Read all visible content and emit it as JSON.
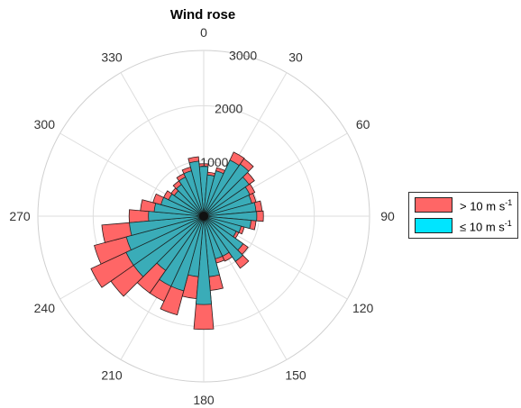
{
  "chart_data": {
    "type": "polar-bar",
    "title": "Wind rose",
    "angle_labels": [
      "0",
      "30",
      "60",
      "90",
      "120",
      "150",
      "180",
      "210",
      "240",
      "270",
      "300",
      "330"
    ],
    "radial_ticks": [
      1000,
      2000,
      3000
    ],
    "radial_tick_labels": [
      "1000",
      "2000",
      "3000"
    ],
    "rlim": [
      0,
      3000
    ],
    "direction_convention": "clockwise from north",
    "bin_width_deg": 10,
    "colors": {
      "low": "#3aacb8",
      "high": "#ff6666",
      "grid": "#dddddd"
    },
    "legend": {
      "placement": "right",
      "items": [
        {
          "key": "high",
          "prefix": "> 10 m s",
          "sup": "-1",
          "color": "#ff6666"
        },
        {
          "key": "low",
          "prefix": "≤ 10 m s",
          "sup": "-1",
          "color": "#00e5ff"
        }
      ]
    },
    "bins": [
      {
        "dir": 0,
        "low": 900,
        "high": 950
      },
      {
        "dir": 10,
        "low": 750,
        "high": 800
      },
      {
        "dir": 20,
        "low": 850,
        "high": 910
      },
      {
        "dir": 30,
        "low": 1120,
        "high": 1280
      },
      {
        "dir": 40,
        "low": 1150,
        "high": 1270
      },
      {
        "dir": 50,
        "low": 1000,
        "high": 1120
      },
      {
        "dir": 60,
        "low": 920,
        "high": 1020
      },
      {
        "dir": 70,
        "low": 900,
        "high": 980
      },
      {
        "dir": 80,
        "low": 950,
        "high": 1060
      },
      {
        "dir": 90,
        "low": 960,
        "high": 1080
      },
      {
        "dir": 100,
        "low": 860,
        "high": 950
      },
      {
        "dir": 110,
        "low": 700,
        "high": 760
      },
      {
        "dir": 120,
        "low": 650,
        "high": 700
      },
      {
        "dir": 130,
        "low": 870,
        "high": 980
      },
      {
        "dir": 140,
        "low": 1000,
        "high": 1150
      },
      {
        "dir": 150,
        "low": 800,
        "high": 900
      },
      {
        "dir": 160,
        "low": 800,
        "high": 880
      },
      {
        "dir": 170,
        "low": 1100,
        "high": 1350
      },
      {
        "dir": 180,
        "low": 1600,
        "high": 2050
      },
      {
        "dir": 190,
        "low": 1100,
        "high": 1500
      },
      {
        "dir": 200,
        "low": 1400,
        "high": 1850
      },
      {
        "dir": 210,
        "low": 1400,
        "high": 1700
      },
      {
        "dir": 220,
        "low": 1200,
        "high": 1700
      },
      {
        "dir": 230,
        "low": 1550,
        "high": 2050
      },
      {
        "dir": 240,
        "low": 1550,
        "high": 2250
      },
      {
        "dir": 250,
        "low": 1450,
        "high": 2050
      },
      {
        "dir": 260,
        "low": 1350,
        "high": 1850
      },
      {
        "dir": 270,
        "low": 1000,
        "high": 1350
      },
      {
        "dir": 280,
        "low": 900,
        "high": 1150
      },
      {
        "dir": 290,
        "low": 800,
        "high": 950
      },
      {
        "dir": 300,
        "low": 700,
        "high": 800
      },
      {
        "dir": 310,
        "low": 650,
        "high": 720
      },
      {
        "dir": 320,
        "low": 700,
        "high": 780
      },
      {
        "dir": 330,
        "low": 780,
        "high": 850
      },
      {
        "dir": 340,
        "low": 850,
        "high": 920
      },
      {
        "dir": 350,
        "low": 1000,
        "high": 1080
      }
    ]
  }
}
